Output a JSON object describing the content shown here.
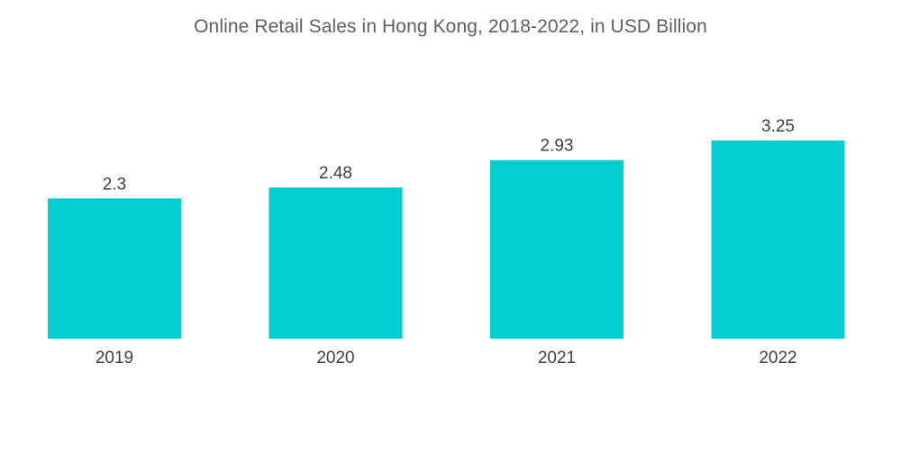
{
  "chart_data": {
    "type": "bar",
    "title": "Online Retail Sales in Hong Kong, 2018-2022, in USD Billion",
    "xlabel": "",
    "ylabel": "",
    "categories": [
      "2019",
      "2020",
      "2021",
      "2022"
    ],
    "values": [
      2.3,
      2.48,
      2.93,
      3.25
    ],
    "value_labels": [
      "2.3",
      "2.48",
      "2.93",
      "3.25"
    ],
    "bar_color": "#00ced1",
    "ylim": [
      0,
      3.25
    ],
    "grid": false,
    "legend": "none"
  }
}
